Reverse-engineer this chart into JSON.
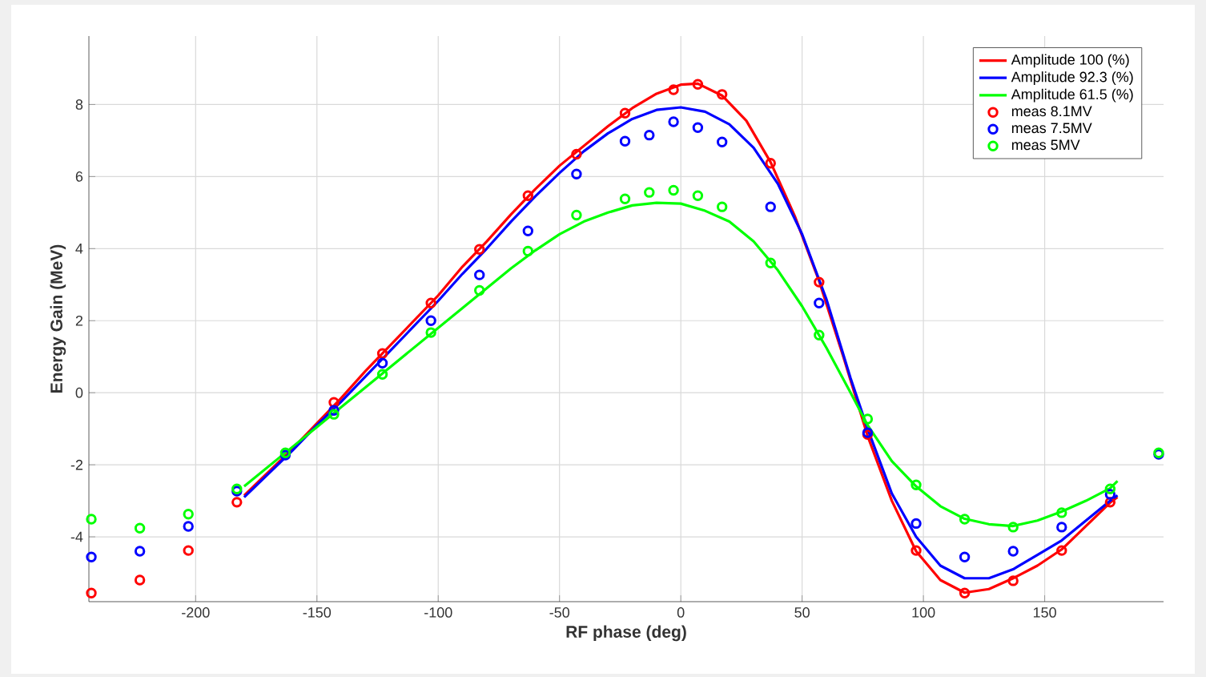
{
  "chart_data": {
    "type": "line",
    "xlabel": "RF phase (deg)",
    "ylabel": "Energy Gain (MeV)",
    "xlim": [
      -244,
      199
    ],
    "ylim": [
      -5.8,
      9.9
    ],
    "xticks": [
      -200,
      -150,
      -100,
      -50,
      0,
      50,
      100,
      150
    ],
    "yticks": [
      -4,
      -2,
      0,
      2,
      4,
      6,
      8
    ],
    "grid": true,
    "legend": "top right",
    "series": [
      {
        "name": "Amplitude 100 (%)",
        "color": "#ff0000",
        "x": [
          -180,
          -170,
          -160,
          -150,
          -140,
          -130,
          -120,
          -110,
          -100,
          -90,
          -80,
          -70,
          -60,
          -50,
          -40,
          -30,
          -20,
          -10,
          0,
          7,
          17,
          27,
          37,
          47,
          57,
          67,
          77,
          87,
          97,
          107,
          117,
          127,
          137,
          147,
          157,
          167,
          177,
          180
        ],
        "values": [
          -2.85,
          -2.2,
          -1.55,
          -0.85,
          -0.15,
          0.6,
          1.3,
          2.0,
          2.7,
          3.5,
          4.2,
          4.95,
          5.65,
          6.3,
          6.85,
          7.4,
          7.9,
          8.3,
          8.55,
          8.58,
          8.25,
          7.55,
          6.4,
          4.9,
          3.1,
          1.0,
          -1.2,
          -3.0,
          -4.4,
          -5.2,
          -5.55,
          -5.45,
          -5.15,
          -4.8,
          -4.35,
          -3.7,
          -3.05,
          -2.9
        ]
      },
      {
        "name": "Amplitude 92.3 (%)",
        "color": "#0000ff",
        "x": [
          -180,
          -170,
          -160,
          -150,
          -140,
          -130,
          -120,
          -110,
          -100,
          -90,
          -80,
          -70,
          -60,
          -50,
          -40,
          -30,
          -20,
          -10,
          0,
          10,
          20,
          30,
          40,
          50,
          60,
          70,
          77,
          87,
          97,
          107,
          117,
          127,
          137,
          147,
          157,
          167,
          177,
          180
        ],
        "values": [
          -2.9,
          -2.25,
          -1.6,
          -0.9,
          -0.25,
          0.45,
          1.15,
          1.85,
          2.55,
          3.3,
          4.0,
          4.75,
          5.45,
          6.1,
          6.7,
          7.2,
          7.6,
          7.85,
          7.92,
          7.8,
          7.45,
          6.8,
          5.8,
          4.4,
          2.6,
          0.4,
          -1.0,
          -2.8,
          -4.0,
          -4.8,
          -5.15,
          -5.15,
          -4.9,
          -4.5,
          -4.1,
          -3.55,
          -3.0,
          -2.85
        ]
      },
      {
        "name": "Amplitude 61.5 (%)",
        "color": "#00ff00",
        "x": [
          -180,
          -170,
          -160,
          -150,
          -140,
          -130,
          -120,
          -110,
          -100,
          -90,
          -80,
          -70,
          -60,
          -50,
          -40,
          -30,
          -20,
          -10,
          0,
          10,
          20,
          30,
          40,
          50,
          60,
          70,
          77,
          87,
          97,
          107,
          117,
          127,
          137,
          147,
          157,
          167,
          177,
          180
        ],
        "values": [
          -2.6,
          -2.05,
          -1.5,
          -0.95,
          -0.4,
          0.15,
          0.7,
          1.25,
          1.8,
          2.35,
          2.9,
          3.45,
          3.95,
          4.4,
          4.75,
          5.0,
          5.2,
          5.27,
          5.25,
          5.05,
          4.75,
          4.2,
          3.4,
          2.4,
          1.25,
          0.0,
          -0.9,
          -1.9,
          -2.6,
          -3.15,
          -3.5,
          -3.65,
          -3.7,
          -3.55,
          -3.3,
          -3.0,
          -2.65,
          -2.45
        ]
      },
      {
        "name": "meas 8.1MV",
        "type": "scatter",
        "marker": "circle",
        "color": "#ff0000",
        "x": [
          -243,
          -223,
          -203,
          -183,
          -143,
          -123,
          -103,
          -83,
          -63,
          -43,
          -23,
          -3,
          7,
          17,
          37,
          57,
          77,
          97,
          117,
          137,
          157,
          177
        ],
        "values": [
          -5.56,
          -5.2,
          -4.38,
          -3.04,
          -0.27,
          1.09,
          2.49,
          3.98,
          5.47,
          6.62,
          7.76,
          8.41,
          8.56,
          8.28,
          6.37,
          3.07,
          -1.16,
          -4.38,
          -5.56,
          -5.22,
          -4.38,
          -3.04
        ]
      },
      {
        "name": "meas 7.5MV",
        "type": "scatter",
        "marker": "circle",
        "color": "#0000ff",
        "x": [
          -243,
          -223,
          -203,
          -183,
          -163,
          -143,
          -123,
          -103,
          -83,
          -63,
          -43,
          -23,
          -13,
          -3,
          7,
          17,
          37,
          57,
          77,
          97,
          117,
          137,
          157,
          177,
          197
        ],
        "values": [
          -4.56,
          -4.4,
          -3.71,
          -2.73,
          -1.73,
          -0.49,
          0.82,
          2.0,
          3.27,
          4.49,
          6.07,
          6.98,
          7.15,
          7.52,
          7.36,
          6.96,
          5.16,
          2.49,
          -1.11,
          -3.63,
          -4.56,
          -4.4,
          -3.73,
          -2.82,
          -1.71
        ]
      },
      {
        "name": "meas 5MV",
        "type": "scatter",
        "marker": "circle",
        "color": "#00ff00",
        "x": [
          -243,
          -223,
          -203,
          -183,
          -163,
          -143,
          -123,
          -103,
          -83,
          -63,
          -43,
          -23,
          -13,
          -3,
          7,
          17,
          37,
          57,
          77,
          97,
          117,
          137,
          157,
          177,
          197
        ],
        "values": [
          -3.51,
          -3.76,
          -3.37,
          -2.67,
          -1.67,
          -0.6,
          0.51,
          1.67,
          2.84,
          3.93,
          4.93,
          5.38,
          5.56,
          5.62,
          5.47,
          5.16,
          3.6,
          1.6,
          -0.73,
          -2.56,
          -3.51,
          -3.73,
          -3.33,
          -2.67,
          -1.67
        ]
      }
    ]
  }
}
